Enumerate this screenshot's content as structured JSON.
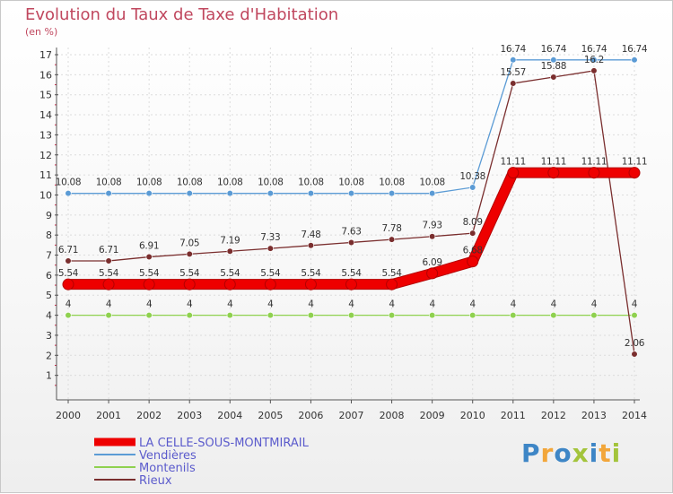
{
  "chart_data": {
    "type": "line",
    "title": "Evolution du Taux de Taxe d'Habitation",
    "unit_label": "(en %)",
    "x": [
      "2000",
      "2001",
      "2002",
      "2003",
      "2004",
      "2005",
      "2006",
      "2007",
      "2008",
      "2009",
      "2010",
      "2011",
      "2012",
      "2013",
      "2014"
    ],
    "ylim": [
      0,
      17
    ],
    "yticks": [
      "1",
      "2",
      "3",
      "4",
      "5",
      "6",
      "7",
      "8",
      "9",
      "10",
      "11",
      "12",
      "13",
      "14",
      "15",
      "16",
      "17"
    ],
    "grid": true,
    "series": [
      {
        "name": "LA CELLE-SOUS-MONTMIRAIL",
        "color": "#ee0000",
        "values": [
          5.54,
          5.54,
          5.54,
          5.54,
          5.54,
          5.54,
          5.54,
          5.54,
          5.54,
          6.09,
          6.68,
          11.11,
          11.11,
          11.11,
          11.11
        ],
        "labels": [
          "5.54",
          "5.54",
          "5.54",
          "5.54",
          "5.54",
          "5.54",
          "5.54",
          "5.54",
          "5.54",
          "6.09",
          "6.68",
          "11.11",
          "11.11",
          "11.11",
          "11.11"
        ]
      },
      {
        "name": "Vendières",
        "color": "#5b9bd5",
        "values": [
          10.08,
          10.08,
          10.08,
          10.08,
          10.08,
          10.08,
          10.08,
          10.08,
          10.08,
          10.08,
          10.38,
          16.74,
          16.74,
          16.74,
          16.74
        ],
        "labels": [
          "10.08",
          "10.08",
          "10.08",
          "10.08",
          "10.08",
          "10.08",
          "10.08",
          "10.08",
          "10.08",
          "10.08",
          "10.38",
          "16.74",
          "16.74",
          "16.74",
          "16.74"
        ]
      },
      {
        "name": "Montenils",
        "color": "#8fd14f",
        "values": [
          4,
          4,
          4,
          4,
          4,
          4,
          4,
          4,
          4,
          4,
          4,
          4,
          4,
          4,
          4
        ],
        "labels": [
          "4",
          "4",
          "4",
          "4",
          "4",
          "4",
          "4",
          "4",
          "4",
          "4",
          "4",
          "4",
          "4",
          "4",
          "4"
        ]
      },
      {
        "name": "Rieux",
        "color": "#7a2e2e",
        "values": [
          6.71,
          6.71,
          6.91,
          7.05,
          7.19,
          7.33,
          7.48,
          7.63,
          7.78,
          7.93,
          8.09,
          15.57,
          15.88,
          16.2,
          2.06
        ],
        "labels": [
          "6.71",
          "6.71",
          "6.91",
          "7.05",
          "7.19",
          "7.33",
          "7.48",
          "7.63",
          "7.78",
          "7.93",
          "8.09",
          "15.57",
          "15.88",
          "16.2",
          "2.06"
        ]
      }
    ],
    "legend_position": "bottom-left"
  },
  "brand": {
    "letters": [
      "P",
      "r",
      "o",
      "x",
      "i",
      "t",
      "i"
    ]
  }
}
